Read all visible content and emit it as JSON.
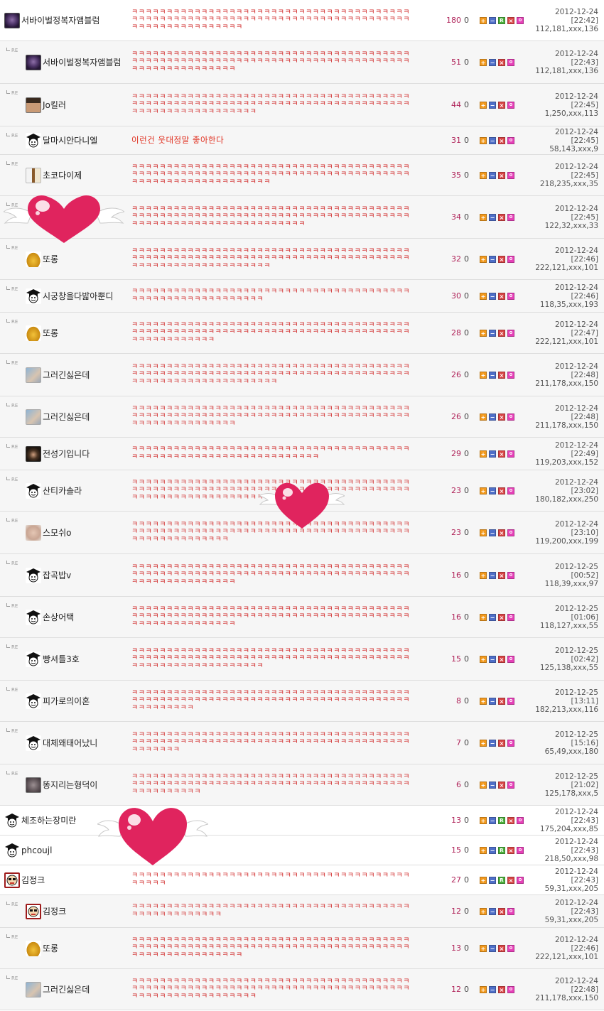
{
  "reply_marker": "RE",
  "comments": [
    {
      "reply": false,
      "nick": "서바이벌정복자앰블럼",
      "avatar": "emblem",
      "text": "ㅋㅋㅋㅋㅋㅋㅋㅋㅋㅋㅋㅋㅋㅋㅋㅋㅋㅋㅋㅋㅋㅋㅋㅋㅋㅋㅋㅋㅋㅋㅋㅋㅋㅋㅋㅋㅋㅋㅋㅋㅋㅋㅋㅋㅋㅋㅋㅋㅋㅋㅋㅋㅋㅋㅋㅋㅋㅋㅋㅋㅋㅋㅋㅋㅋㅋㅋㅋㅋㅋㅋㅋㅋㅋㅋㅋㅋㅋㅋㅋㅋㅋㅋㅋㅋㅋㅋㅋㅋㅋㅋㅋㅋㅋㅋㅋ",
      "likes": "180",
      "dislikes": "0",
      "r": true,
      "date": "2012-12-24",
      "time": "[22:42]",
      "ip": "112,181,xxx,136"
    },
    {
      "reply": true,
      "nick": "서바이벌정복자앰블럼",
      "avatar": "emblem",
      "text": "ㅋㅋㅋㅋㅋㅋㅋㅋㅋㅋㅋㅋㅋㅋㅋㅋㅋㅋㅋㅋㅋㅋㅋㅋㅋㅋㅋㅋㅋㅋㅋㅋㅋㅋㅋㅋㅋㅋㅋㅋㅋㅋㅋㅋㅋㅋㅋㅋㅋㅋㅋㅋㅋㅋㅋㅋㅋㅋㅋㅋㅋㅋㅋㅋㅋㅋㅋㅋㅋㅋㅋㅋㅋㅋㅋㅋㅋㅋㅋㅋㅋㅋㅋㅋㅋㅋㅋㅋㅋㅋㅋㅋㅋㅋㅋ",
      "likes": "51",
      "dislikes": "0",
      "r": false,
      "date": "2012-12-24",
      "time": "[22:43]",
      "ip": "112,181,xxx,136"
    },
    {
      "reply": true,
      "nick": "Jo킬러",
      "avatar": "face",
      "text": "ㅋㅋㅋㅋㅋㅋㅋㅋㅋㅋㅋㅋㅋㅋㅋㅋㅋㅋㅋㅋㅋㅋㅋㅋㅋㅋㅋㅋㅋㅋㅋㅋㅋㅋㅋㅋㅋㅋㅋㅋㅋㅋㅋㅋㅋㅋㅋㅋㅋㅋㅋㅋㅋㅋㅋㅋㅋㅋㅋㅋㅋㅋㅋㅋㅋㅋㅋㅋㅋㅋㅋㅋㅋㅋㅋㅋㅋㅋㅋㅋㅋㅋㅋㅋㅋㅋㅋㅋㅋㅋㅋㅋㅋㅋㅋㅋㅋㅋ",
      "likes": "44",
      "dislikes": "0",
      "r": false,
      "date": "2012-12-24",
      "time": "[22:45]",
      "ip": "1,250,xxx,113"
    },
    {
      "reply": true,
      "nick": "달마시안다니엘",
      "avatar": "grad",
      "text": "이런건 웃대정말 좋아한다",
      "normal": true,
      "likes": "31",
      "dislikes": "0",
      "r": false,
      "date": "2012-12-24",
      "time": "[22:45]",
      "ip": "58,143,xxx,9"
    },
    {
      "reply": true,
      "nick": "초코다이제",
      "avatar": "choco",
      "text": "ㅋㅋㅋㅋㅋㅋㅋㅋㅋㅋㅋㅋㅋㅋㅋㅋㅋㅋㅋㅋㅋㅋㅋㅋㅋㅋㅋㅋㅋㅋㅋㅋㅋㅋㅋㅋㅋㅋㅋㅋㅋㅋㅋㅋㅋㅋㅋㅋㅋㅋㅋㅋㅋㅋㅋㅋㅋㅋㅋㅋㅋㅋㅋㅋㅋㅋㅋㅋㅋㅋㅋㅋㅋㅋㅋㅋㅋㅋㅋㅋㅋㅋㅋㅋㅋㅋㅋㅋㅋㅋㅋㅋㅋㅋㅋㅋㅋㅋㅋㅋ",
      "likes": "35",
      "dislikes": "0",
      "r": false,
      "date": "2012-12-24",
      "time": "[22:45]",
      "ip": "218,235,xxx,35"
    },
    {
      "reply": true,
      "nick": "",
      "avatar": "none",
      "text": "ㅋㅋㅋㅋㅋㅋㅋㅋㅋㅋㅋㅋㅋㅋㅋㅋㅋㅋㅋㅋㅋㅋㅋㅋㅋㅋㅋㅋㅋㅋㅋㅋㅋㅋㅋㅋㅋㅋㅋㅋㅋㅋㅋㅋㅋㅋㅋㅋㅋㅋㅋㅋㅋㅋㅋㅋㅋㅋㅋㅋㅋㅋㅋㅋㅋㅋㅋㅋㅋㅋㅋㅋㅋㅋㅋㅋㅋㅋㅋㅋㅋㅋㅋㅋㅋㅋㅋㅋㅋㅋㅋㅋㅋㅋㅋㅋㅋㅋㅋㅋㅋㅋㅋㅋㅋ",
      "likes": "34",
      "dislikes": "0",
      "r": false,
      "date": "2012-12-24",
      "time": "[22:45]",
      "ip": "122,32,xxx,33"
    },
    {
      "reply": true,
      "nick": "또롱",
      "avatar": "bell",
      "text": "ㅋㅋㅋㅋㅋㅋㅋㅋㅋㅋㅋㅋㅋㅋㅋㅋㅋㅋㅋㅋㅋㅋㅋㅋㅋㅋㅋㅋㅋㅋㅋㅋㅋㅋㅋㅋㅋㅋㅋㅋㅋㅋㅋㅋㅋㅋㅋㅋㅋㅋㅋㅋㅋㅋㅋㅋㅋㅋㅋㅋㅋㅋㅋㅋㅋㅋㅋㅋㅋㅋㅋㅋㅋㅋㅋㅋㅋㅋㅋㅋㅋㅋㅋㅋㅋㅋㅋㅋㅋㅋㅋㅋㅋㅋㅋㅋㅋㅋㅋㅋ",
      "likes": "32",
      "dislikes": "0",
      "r": false,
      "date": "2012-12-24",
      "time": "[22:46]",
      "ip": "222,121,xxx,101"
    },
    {
      "reply": true,
      "nick": "시궁창을다밟아뿐디",
      "avatar": "grad",
      "text": "ㅋㅋㅋㅋㅋㅋㅋㅋㅋㅋㅋㅋㅋㅋㅋㅋㅋㅋㅋㅋㅋㅋㅋㅋㅋㅋㅋㅋㅋㅋㅋㅋㅋㅋㅋㅋㅋㅋㅋㅋㅋㅋㅋㅋㅋㅋㅋㅋㅋㅋㅋㅋㅋㅋㅋㅋㅋㅋㅋ",
      "likes": "30",
      "dislikes": "0",
      "r": false,
      "date": "2012-12-24",
      "time": "[22:46]",
      "ip": "118,35,xxx,193"
    },
    {
      "reply": true,
      "nick": "또롱",
      "avatar": "bell",
      "text": "ㅋㅋㅋㅋㅋㅋㅋㅋㅋㅋㅋㅋㅋㅋㅋㅋㅋㅋㅋㅋㅋㅋㅋㅋㅋㅋㅋㅋㅋㅋㅋㅋㅋㅋㅋㅋㅋㅋㅋㅋㅋㅋㅋㅋㅋㅋㅋㅋㅋㅋㅋㅋㅋㅋㅋㅋㅋㅋㅋㅋㅋㅋㅋㅋㅋㅋㅋㅋㅋㅋㅋㅋㅋㅋㅋㅋㅋㅋㅋㅋㅋㅋㅋㅋㅋㅋㅋㅋㅋㅋㅋㅋ",
      "likes": "28",
      "dislikes": "0",
      "r": false,
      "date": "2012-12-24",
      "time": "[22:47]",
      "ip": "222,121,xxx,101"
    },
    {
      "reply": true,
      "nick": "그러긴싫은데",
      "avatar": "blur",
      "text": "ㅋㅋㅋㅋㅋㅋㅋㅋㅋㅋㅋㅋㅋㅋㅋㅋㅋㅋㅋㅋㅋㅋㅋㅋㅋㅋㅋㅋㅋㅋㅋㅋㅋㅋㅋㅋㅋㅋㅋㅋㅋㅋㅋㅋㅋㅋㅋㅋㅋㅋㅋㅋㅋㅋㅋㅋㅋㅋㅋㅋㅋㅋㅋㅋㅋㅋㅋㅋㅋㅋㅋㅋㅋㅋㅋㅋㅋㅋㅋㅋㅋㅋㅋㅋㅋㅋㅋㅋㅋㅋㅋㅋㅋㅋㅋㅋㅋㅋㅋㅋㅋ",
      "likes": "26",
      "dislikes": "0",
      "r": false,
      "date": "2012-12-24",
      "time": "[22:48]",
      "ip": "211,178,xxx,150"
    },
    {
      "reply": true,
      "nick": "그러긴싫은데",
      "avatar": "blur",
      "text": "ㅋㅋㅋㅋㅋㅋㅋㅋㅋㅋㅋㅋㅋㅋㅋㅋㅋㅋㅋㅋㅋㅋㅋㅋㅋㅋㅋㅋㅋㅋㅋㅋㅋㅋㅋㅋㅋㅋㅋㅋㅋㅋㅋㅋㅋㅋㅋㅋㅋㅋㅋㅋㅋㅋㅋㅋㅋㅋㅋㅋㅋㅋㅋㅋㅋㅋㅋㅋㅋㅋㅋㅋㅋㅋㅋㅋㅋㅋㅋㅋㅋㅋㅋㅋㅋㅋㅋㅋㅋㅋㅋㅋㅋㅋㅋ",
      "likes": "26",
      "dislikes": "0",
      "r": false,
      "date": "2012-12-24",
      "time": "[22:48]",
      "ip": "211,178,xxx,150"
    },
    {
      "reply": true,
      "nick": "전성기입니다",
      "avatar": "dark",
      "text": "ㅋㅋㅋㅋㅋㅋㅋㅋㅋㅋㅋㅋㅋㅋㅋㅋㅋㅋㅋㅋㅋㅋㅋㅋㅋㅋㅋㅋㅋㅋㅋㅋㅋㅋㅋㅋㅋㅋㅋㅋㅋㅋㅋㅋㅋㅋㅋㅋㅋㅋㅋㅋㅋㅋㅋㅋㅋㅋㅋㅋㅋㅋㅋㅋㅋㅋㅋ",
      "likes": "29",
      "dislikes": "0",
      "r": false,
      "date": "2012-12-24",
      "time": "[22:49]",
      "ip": "119,203,xxx,152"
    },
    {
      "reply": true,
      "nick": "산티카솔라",
      "avatar": "grad",
      "text": "ㅋㅋㅋㅋㅋㅋㅋㅋㅋㅋㅋㅋㅋㅋㅋㅋㅋㅋㅋㅋㅋㅋㅋㅋㅋㅋㅋㅋㅋㅋㅋㅋㅋㅋㅋㅋㅋㅋㅋㅋㅋㅋㅋㅋㅋㅋㅋㅋㅋㅋㅋㅋㅋㅋㅋㅋㅋㅋㅋㅋㅋㅋㅋㅋㅋㅋㅋㅋㅋㅋㅋㅋㅋㅋㅋㅋㅋㅋㅋㅋㅋㅋㅋㅋㅋㅋㅋㅋㅋㅋㅋㅋㅋㅋㅋㅋㅋㅋㅋㅋㅋㅋ",
      "likes": "23",
      "dislikes": "0",
      "r": false,
      "date": "2012-12-24",
      "time": "[23:02]",
      "ip": "180,182,xxx,250"
    },
    {
      "reply": true,
      "nick": "스모쉬o",
      "avatar": "pale",
      "text": "ㅋㅋㅋㅋㅋㅋㅋㅋㅋㅋㅋㅋㅋㅋㅋㅋㅋㅋㅋㅋㅋㅋㅋㅋㅋㅋㅋㅋㅋㅋㅋㅋㅋㅋㅋㅋㅋㅋㅋㅋㅋㅋㅋㅋㅋㅋㅋㅋㅋㅋㅋㅋㅋㅋㅋㅋㅋㅋㅋㅋㅋㅋㅋㅋㅋㅋㅋㅋㅋㅋㅋㅋㅋㅋㅋㅋㅋㅋㅋㅋㅋㅋㅋㅋㅋㅋㅋㅋㅋㅋㅋㅋㅋㅋ",
      "likes": "23",
      "dislikes": "0",
      "r": false,
      "date": "2012-12-24",
      "time": "[23:10]",
      "ip": "119,200,xxx,199"
    },
    {
      "reply": true,
      "nick": "잡곡밥v",
      "avatar": "grad",
      "text": "ㅋㅋㅋㅋㅋㅋㅋㅋㅋㅋㅋㅋㅋㅋㅋㅋㅋㅋㅋㅋㅋㅋㅋㅋㅋㅋㅋㅋㅋㅋㅋㅋㅋㅋㅋㅋㅋㅋㅋㅋㅋㅋㅋㅋㅋㅋㅋㅋㅋㅋㅋㅋㅋㅋㅋㅋㅋㅋㅋㅋㅋㅋㅋㅋㅋㅋㅋㅋㅋㅋㅋㅋㅋㅋㅋㅋㅋㅋㅋㅋㅋㅋㅋㅋㅋㅋㅋㅋㅋㅋㅋㅋㅋㅋㅋ",
      "likes": "16",
      "dislikes": "0",
      "r": false,
      "date": "2012-12-25",
      "time": "[00:52]",
      "ip": "118,39,xxx,97"
    },
    {
      "reply": true,
      "nick": "손상어택",
      "avatar": "grad",
      "text": "ㅋㅋㅋㅋㅋㅋㅋㅋㅋㅋㅋㅋㅋㅋㅋㅋㅋㅋㅋㅋㅋㅋㅋㅋㅋㅋㅋㅋㅋㅋㅋㅋㅋㅋㅋㅋㅋㅋㅋㅋㅋㅋㅋㅋㅋㅋㅋㅋㅋㅋㅋㅋㅋㅋㅋㅋㅋㅋㅋㅋㅋㅋㅋㅋㅋㅋㅋㅋㅋㅋㅋㅋㅋㅋㅋㅋㅋㅋㅋㅋㅋㅋㅋㅋㅋㅋㅋㅋㅋㅋㅋㅋㅋㅋㅋ",
      "likes": "16",
      "dislikes": "0",
      "r": false,
      "date": "2012-12-25",
      "time": "[01:06]",
      "ip": "118,127,xxx,55"
    },
    {
      "reply": true,
      "nick": "빵셔틀3호",
      "avatar": "grad",
      "text": "ㅋㅋㅋㅋㅋㅋㅋㅋㅋㅋㅋㅋㅋㅋㅋㅋㅋㅋㅋㅋㅋㅋㅋㅋㅋㅋㅋㅋㅋㅋㅋㅋㅋㅋㅋㅋㅋㅋㅋㅋㅋㅋㅋㅋㅋㅋㅋㅋㅋㅋㅋㅋㅋㅋㅋㅋㅋㅋㅋㅋㅋㅋㅋㅋㅋㅋㅋㅋㅋㅋㅋㅋㅋㅋㅋㅋㅋㅋㅋㅋㅋㅋㅋㅋㅋㅋㅋㅋㅋㅋㅋㅋㅋㅋㅋㅋㅋㅋㅋ",
      "likes": "15",
      "dislikes": "0",
      "r": false,
      "date": "2012-12-25",
      "time": "[02:42]",
      "ip": "125,138,xxx,55"
    },
    {
      "reply": true,
      "nick": "피가로의이혼",
      "avatar": "grad",
      "text": "ㅋㅋㅋㅋㅋㅋㅋㅋㅋㅋㅋㅋㅋㅋㅋㅋㅋㅋㅋㅋㅋㅋㅋㅋㅋㅋㅋㅋㅋㅋㅋㅋㅋㅋㅋㅋㅋㅋㅋㅋㅋㅋㅋㅋㅋㅋㅋㅋㅋㅋㅋㅋㅋㅋㅋㅋㅋㅋㅋㅋㅋㅋㅋㅋㅋㅋㅋㅋㅋㅋㅋㅋㅋㅋㅋㅋㅋㅋㅋㅋㅋㅋㅋㅋㅋㅋㅋㅋㅋ",
      "likes": "8",
      "dislikes": "0",
      "r": false,
      "date": "2012-12-25",
      "time": "[13:11]",
      "ip": "182,213,xxx,116"
    },
    {
      "reply": true,
      "nick": "대체왜태어났니",
      "avatar": "grad",
      "text": "ㅋㅋㅋㅋㅋㅋㅋㅋㅋㅋㅋㅋㅋㅋㅋㅋㅋㅋㅋㅋㅋㅋㅋㅋㅋㅋㅋㅋㅋㅋㅋㅋㅋㅋㅋㅋㅋㅋㅋㅋㅋㅋㅋㅋㅋㅋㅋㅋㅋㅋㅋㅋㅋㅋㅋㅋㅋㅋㅋㅋㅋㅋㅋㅋㅋㅋㅋㅋㅋㅋㅋㅋㅋㅋㅋㅋㅋㅋㅋㅋㅋㅋㅋㅋㅋㅋㅋ",
      "likes": "7",
      "dislikes": "0",
      "r": false,
      "date": "2012-12-25",
      "time": "[15:16]",
      "ip": "65,49,xxx,180"
    },
    {
      "reply": true,
      "nick": "똥지리는형덕이",
      "avatar": "wolf",
      "text": "ㅋㅋㅋㅋㅋㅋㅋㅋㅋㅋㅋㅋㅋㅋㅋㅋㅋㅋㅋㅋㅋㅋㅋㅋㅋㅋㅋㅋㅋㅋㅋㅋㅋㅋㅋㅋㅋㅋㅋㅋㅋㅋㅋㅋㅋㅋㅋㅋㅋㅋㅋㅋㅋㅋㅋㅋㅋㅋㅋㅋㅋㅋㅋㅋㅋㅋㅋㅋㅋㅋㅋㅋㅋㅋㅋㅋㅋㅋㅋㅋㅋㅋㅋㅋㅋㅋㅋㅋㅋㅋ",
      "likes": "6",
      "dislikes": "0",
      "r": false,
      "date": "2012-12-25",
      "time": "[21:02]",
      "ip": "125,178,xxx,5"
    },
    {
      "reply": false,
      "nick": "체조하는장미란",
      "avatar": "grad",
      "text": "",
      "likes": "13",
      "dislikes": "0",
      "r": true,
      "date": "2012-12-24",
      "time": "[22:43]",
      "ip": "175,204,xxx,85"
    },
    {
      "reply": false,
      "nick": "phcoujl",
      "avatar": "grad",
      "text": "",
      "likes": "15",
      "dislikes": "0",
      "r": true,
      "date": "2012-12-24",
      "time": "[22:43]",
      "ip": "218,50,xxx,98"
    },
    {
      "reply": false,
      "nick": "김정크",
      "avatar": "junk",
      "text": "ㅋㅋㅋㅋㅋㅋㅋㅋㅋㅋㅋㅋㅋㅋㅋㅋㅋㅋㅋㅋㅋㅋㅋㅋㅋㅋㅋㅋㅋㅋㅋㅋㅋㅋㅋㅋㅋㅋㅋㅋㅋㅋㅋㅋㅋ",
      "likes": "27",
      "dislikes": "0",
      "r": true,
      "date": "2012-12-24",
      "time": "[22:43]",
      "ip": "59,31,xxx,205"
    },
    {
      "reply": true,
      "nick": "김정크",
      "avatar": "junk",
      "text": "ㅋㅋㅋㅋㅋㅋㅋㅋㅋㅋㅋㅋㅋㅋㅋㅋㅋㅋㅋㅋㅋㅋㅋㅋㅋㅋㅋㅋㅋㅋㅋㅋㅋㅋㅋㅋㅋㅋㅋㅋㅋㅋㅋㅋㅋㅋㅋㅋㅋㅋㅋㅋㅋ",
      "likes": "12",
      "dislikes": "0",
      "r": false,
      "date": "2012-12-24",
      "time": "[22:43]",
      "ip": "59,31,xxx,205"
    },
    {
      "reply": true,
      "nick": "또롱",
      "avatar": "bell",
      "text": "ㅋㅋㅋㅋㅋㅋㅋㅋㅋㅋㅋㅋㅋㅋㅋㅋㅋㅋㅋㅋㅋㅋㅋㅋㅋㅋㅋㅋㅋㅋㅋㅋㅋㅋㅋㅋㅋㅋㅋㅋㅋㅋㅋㅋㅋㅋㅋㅋㅋㅋㅋㅋㅋㅋㅋㅋㅋㅋㅋㅋㅋㅋㅋㅋㅋㅋㅋㅋㅋㅋㅋㅋㅋㅋㅋㅋㅋㅋㅋㅋㅋㅋㅋㅋㅋㅋㅋㅋㅋㅋㅋㅋㅋㅋㅋㅋ",
      "likes": "13",
      "dislikes": "0",
      "r": false,
      "date": "2012-12-24",
      "time": "[22:46]",
      "ip": "222,121,xxx,101"
    },
    {
      "reply": true,
      "nick": "그러긴싫은데",
      "avatar": "blur",
      "text": "ㅋㅋㅋㅋㅋㅋㅋㅋㅋㅋㅋㅋㅋㅋㅋㅋㅋㅋㅋㅋㅋㅋㅋㅋㅋㅋㅋㅋㅋㅋㅋㅋㅋㅋㅋㅋㅋㅋㅋㅋㅋㅋㅋㅋㅋㅋㅋㅋㅋㅋㅋㅋㅋㅋㅋㅋㅋㅋㅋㅋㅋㅋㅋㅋㅋㅋㅋㅋㅋㅋㅋㅋㅋㅋㅋㅋㅋㅋㅋㅋㅋㅋㅋㅋㅋㅋㅋㅋㅋㅋㅋㅋㅋㅋㅋㅋㅋㅋ",
      "likes": "12",
      "dislikes": "0",
      "r": false,
      "date": "2012-12-24",
      "time": "[22:48]",
      "ip": "211,178,xxx,150"
    }
  ],
  "button_glyphs": {
    "plus": "+",
    "minus": "−",
    "r": "R",
    "x": "×"
  },
  "colors": {
    "likes": "#b0245a",
    "kk": "#d12b2b",
    "heart": "#e0245e"
  }
}
